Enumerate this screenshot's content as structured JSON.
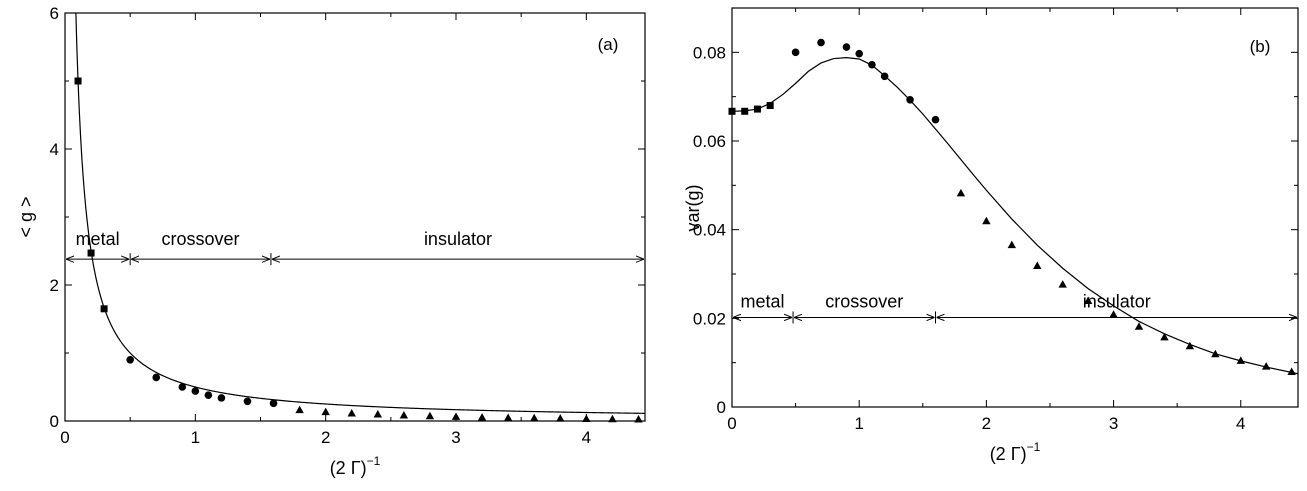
{
  "chart_data": [
    {
      "id": "a",
      "type": "scatter",
      "panel_label": "(a)",
      "xlabel": "(2 Γ)",
      "xlabel_sup": "−1",
      "ylabel": "< g >",
      "xlim": [
        0,
        4.45
      ],
      "ylim": [
        0,
        6
      ],
      "xticks": [
        0,
        1,
        2,
        3,
        4
      ],
      "xtick_labels": [
        "0",
        "1",
        "2",
        "3",
        "4"
      ],
      "yticks": [
        0,
        2,
        4,
        6
      ],
      "ytick_labels": [
        "0",
        "2",
        "4",
        "6"
      ],
      "grid": false,
      "regions": {
        "y": 2.38,
        "items": [
          {
            "label": "metal",
            "x0": 0,
            "x1": 0.5
          },
          {
            "label": "crossover",
            "x0": 0.5,
            "x1": 1.58
          },
          {
            "label": "insulator",
            "x0": 1.58,
            "x1": 4.45
          }
        ]
      },
      "series": [
        {
          "marker": "square",
          "points": [
            [
              0.1,
              5.0
            ],
            [
              0.2,
              2.47
            ],
            [
              0.3,
              1.65
            ]
          ]
        },
        {
          "marker": "circle",
          "points": [
            [
              0.5,
              0.9
            ],
            [
              0.7,
              0.64
            ],
            [
              0.9,
              0.5
            ],
            [
              1.0,
              0.44
            ],
            [
              1.1,
              0.38
            ],
            [
              1.2,
              0.34
            ],
            [
              1.4,
              0.29
            ],
            [
              1.6,
              0.26
            ]
          ]
        },
        {
          "marker": "triangle",
          "points": [
            [
              1.8,
              0.16
            ],
            [
              2.0,
              0.13
            ],
            [
              2.2,
              0.11
            ],
            [
              2.4,
              0.095
            ],
            [
              2.6,
              0.08
            ],
            [
              2.8,
              0.07
            ],
            [
              3.0,
              0.06
            ],
            [
              3.2,
              0.05
            ],
            [
              3.4,
              0.045
            ],
            [
              3.6,
              0.04
            ],
            [
              3.8,
              0.035
            ],
            [
              4.0,
              0.03
            ],
            [
              4.2,
              0.026
            ],
            [
              4.4,
              0.022
            ]
          ]
        }
      ],
      "curve": {
        "description_formula": "1/(3x) decaying fit",
        "x_start": 0.08
      }
    },
    {
      "id": "b",
      "type": "scatter",
      "panel_label": "(b)",
      "xlabel": "(2 Γ)",
      "xlabel_sup": "−1",
      "ylabel": "var(g)",
      "xlim": [
        0,
        4.45
      ],
      "ylim": [
        0,
        0.09
      ],
      "xticks": [
        0,
        1,
        2,
        3,
        4
      ],
      "xtick_labels": [
        "0",
        "1",
        "2",
        "3",
        "4"
      ],
      "yticks": [
        0,
        0.02,
        0.04,
        0.06,
        0.08
      ],
      "ytick_labels": [
        "0",
        "0.02",
        "0.04",
        "0.06",
        "0.08"
      ],
      "grid": false,
      "regions": {
        "y": 0.0202,
        "items": [
          {
            "label": "metal",
            "x0": 0,
            "x1": 0.48
          },
          {
            "label": "crossover",
            "x0": 0.48,
            "x1": 1.6
          },
          {
            "label": "insulator",
            "x0": 1.6,
            "x1": 4.45
          }
        ]
      },
      "series": [
        {
          "marker": "square",
          "points": [
            [
              0.0,
              0.0667
            ],
            [
              0.1,
              0.0667
            ],
            [
              0.2,
              0.0672
            ],
            [
              0.3,
              0.068
            ]
          ]
        },
        {
          "marker": "circle",
          "points": [
            [
              0.5,
              0.08
            ],
            [
              0.7,
              0.0822
            ],
            [
              0.9,
              0.0812
            ],
            [
              1.0,
              0.0797
            ],
            [
              1.1,
              0.0772
            ],
            [
              1.2,
              0.0746
            ],
            [
              1.4,
              0.0693
            ],
            [
              1.6,
              0.0648
            ]
          ]
        },
        {
          "marker": "triangle",
          "points": [
            [
              1.8,
              0.0482
            ],
            [
              2.0,
              0.0419
            ],
            [
              2.2,
              0.0365
            ],
            [
              2.4,
              0.0318
            ],
            [
              2.6,
              0.0276
            ],
            [
              2.8,
              0.0239
            ],
            [
              3.0,
              0.0208
            ],
            [
              3.2,
              0.0181
            ],
            [
              3.4,
              0.0157
            ],
            [
              3.6,
              0.0137
            ],
            [
              3.8,
              0.0119
            ],
            [
              4.0,
              0.0104
            ],
            [
              4.2,
              0.0091
            ],
            [
              4.4,
              0.0079
            ]
          ]
        }
      ],
      "curve": {
        "points": [
          [
            0.0,
            0.0667
          ],
          [
            0.1,
            0.0668
          ],
          [
            0.2,
            0.0672
          ],
          [
            0.3,
            0.0685
          ],
          [
            0.4,
            0.0705
          ],
          [
            0.5,
            0.073
          ],
          [
            0.6,
            0.0757
          ],
          [
            0.7,
            0.0776
          ],
          [
            0.8,
            0.0786
          ],
          [
            0.9,
            0.0788
          ],
          [
            1.0,
            0.0785
          ],
          [
            1.1,
            0.0771
          ],
          [
            1.2,
            0.0747
          ],
          [
            1.3,
            0.0721
          ],
          [
            1.4,
            0.0692
          ],
          [
            1.5,
            0.0661
          ],
          [
            1.6,
            0.0627
          ],
          [
            1.7,
            0.0593
          ],
          [
            1.8,
            0.0558
          ],
          [
            1.9,
            0.0523
          ],
          [
            2.0,
            0.0489
          ],
          [
            2.2,
            0.0424
          ],
          [
            2.4,
            0.0365
          ],
          [
            2.6,
            0.0313
          ],
          [
            2.8,
            0.0267
          ],
          [
            3.0,
            0.0228
          ],
          [
            3.2,
            0.0193
          ],
          [
            3.4,
            0.0165
          ],
          [
            3.6,
            0.0141
          ],
          [
            3.8,
            0.012
          ],
          [
            4.0,
            0.0104
          ],
          [
            4.2,
            0.009
          ],
          [
            4.45,
            0.0075
          ]
        ]
      }
    }
  ]
}
